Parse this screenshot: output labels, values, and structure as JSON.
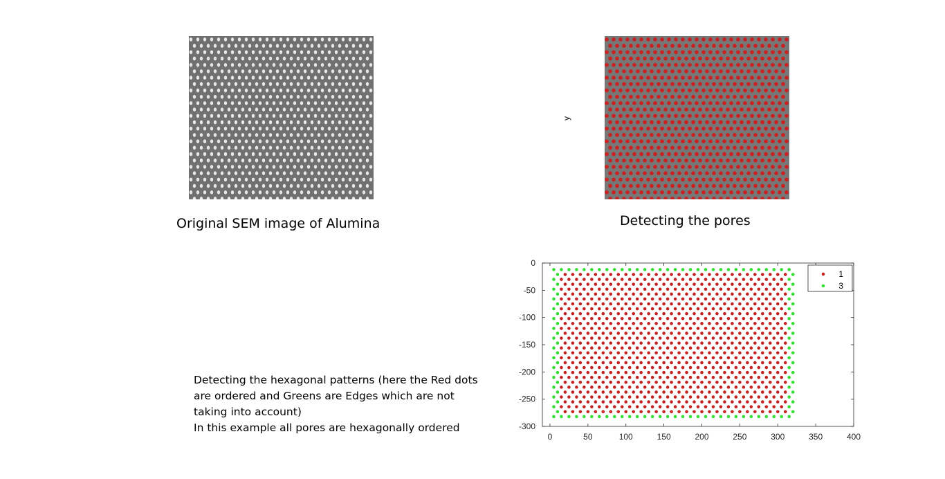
{
  "panels": {
    "sem": {
      "caption": "Original SEM image of Alumina"
    },
    "pores": {
      "caption": "Detecting the pores",
      "ylabel": "y"
    }
  },
  "description": [
    "Detecting the hexagonal patterns (here the Red dots",
    "are ordered and Greens are Edges which are not",
    "taking into account)",
    "In this example all pores are hexagonally ordered"
  ],
  "colors": {
    "sem_bg": "#707070",
    "pore_bright": "#e8e8e8",
    "pore_red": "#cc1f1f",
    "edge_green": "#33dd33",
    "inner_red": "#c42121"
  },
  "chart_data": {
    "type": "scatter",
    "xlim": [
      -10,
      400
    ],
    "ylim": [
      -300,
      0
    ],
    "xticks": [
      0,
      50,
      100,
      150,
      200,
      250,
      300,
      350,
      400
    ],
    "yticks": [
      0,
      -50,
      -100,
      -150,
      -200,
      -250,
      -300
    ],
    "grid": false,
    "legend": {
      "position": "top-right",
      "entries": [
        {
          "name": "1",
          "color": "#c42121"
        },
        {
          "name": "3",
          "color": "#33dd33"
        }
      ]
    },
    "lattice": {
      "x_min": 5,
      "x_max": 322,
      "y_min": -282,
      "y_max": -12,
      "dx": 10,
      "row_spacing": 9
    },
    "series": [
      {
        "name": "1",
        "description": "interior pores (hexagonally ordered)",
        "color": "#c42121"
      },
      {
        "name": "3",
        "description": "edge pores",
        "color": "#33dd33"
      }
    ]
  }
}
